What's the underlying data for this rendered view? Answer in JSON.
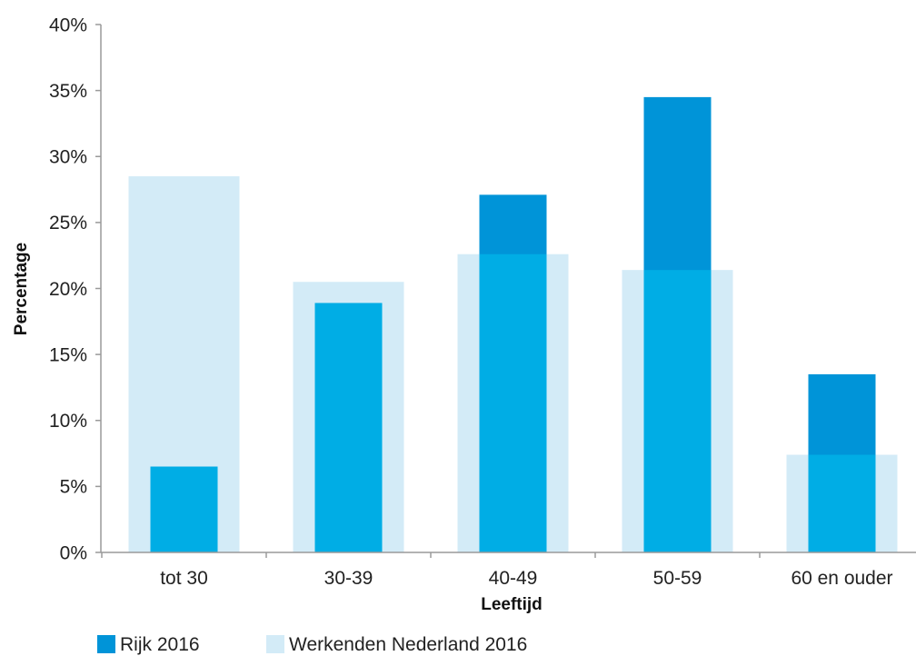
{
  "chart_data": {
    "type": "bar",
    "bar_layout": "overlapping",
    "title": "",
    "xlabel": "Leeftijd",
    "ylabel": "Percentage",
    "categories": [
      "tot 30",
      "30-39",
      "40-49",
      "50-59",
      "60 en ouder"
    ],
    "series": [
      {
        "name": "Rijk 2016",
        "values": [
          6.5,
          18.9,
          27.1,
          34.5,
          13.5
        ],
        "color": "#0094d8"
      },
      {
        "name": "Werkenden Nederland 2016",
        "values": [
          28.5,
          20.5,
          22.6,
          21.4,
          7.4
        ],
        "color": "#d3ebf7"
      }
    ],
    "overlap_color": "#00ade5",
    "ylim": [
      0,
      40
    ],
    "yticks": [
      0,
      5,
      10,
      15,
      20,
      25,
      30,
      35,
      40
    ],
    "ytick_labels": [
      "0%",
      "5%",
      "10%",
      "15%",
      "20%",
      "25%",
      "30%",
      "35%",
      "40%"
    ],
    "grid": false,
    "legend_position": "bottom-left"
  }
}
